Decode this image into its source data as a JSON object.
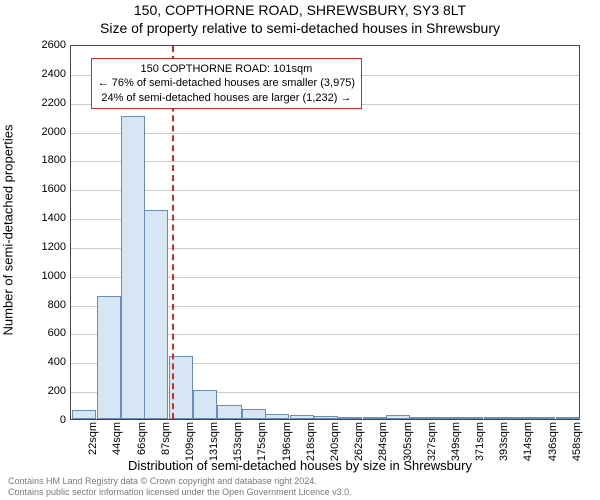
{
  "title_main": "150, COPTHORNE ROAD, SHREWSBURY, SY3 8LT",
  "title_sub": "Size of property relative to semi-detached houses in Shrewsbury",
  "ylabel": "Number of semi-detached properties",
  "xlabel": "Distribution of semi-detached houses by size in Shrewsbury",
  "footer_line1": "Contains HM Land Registry data © Crown copyright and database right 2024.",
  "footer_line2": "Contains public sector information licensed under the Open Government Licence v3.0.",
  "chart": {
    "type": "histogram",
    "background_color": "#ffffff",
    "grid_color": "#cccccc",
    "axis_color": "#444444",
    "bar_fill": "#d6e6f5",
    "bar_border": "#6b8db5",
    "refline_color": "#d62728",
    "annot_border": "#d62728",
    "annot_bg": "#ffffff",
    "title_fontsize": 14,
    "label_fontsize": 13,
    "tick_fontsize": 11,
    "annot_fontsize": 11,
    "footer_fontsize": 9,
    "footer_color": "#7a7a7a",
    "ylim": [
      0,
      2600
    ],
    "ytick_step": 200,
    "xlim": [
      10,
      470
    ],
    "xtick_start": 22,
    "xtick_step": 21.8,
    "xtick_count": 21,
    "xtick_unit": "sqm",
    "bin_width": 21.8,
    "refline_x": 101,
    "annotation": {
      "line1": "150 COPTHORNE ROAD: 101sqm",
      "line2": "← 76% of semi-detached houses are smaller (3,975)",
      "line3": "24% of semi-detached houses are larger (1,232) →",
      "y_value": 2350
    },
    "bins": [
      {
        "x": 22,
        "count": 60
      },
      {
        "x": 44,
        "count": 850
      },
      {
        "x": 66,
        "count": 2100
      },
      {
        "x": 87,
        "count": 1450
      },
      {
        "x": 109,
        "count": 440
      },
      {
        "x": 131,
        "count": 200
      },
      {
        "x": 153,
        "count": 95
      },
      {
        "x": 175,
        "count": 70
      },
      {
        "x": 196,
        "count": 35
      },
      {
        "x": 218,
        "count": 25
      },
      {
        "x": 240,
        "count": 22
      },
      {
        "x": 262,
        "count": 12
      },
      {
        "x": 284,
        "count": 10
      },
      {
        "x": 305,
        "count": 30
      },
      {
        "x": 327,
        "count": 5
      },
      {
        "x": 349,
        "count": 3
      },
      {
        "x": 371,
        "count": 2
      },
      {
        "x": 393,
        "count": 2
      },
      {
        "x": 414,
        "count": 2
      },
      {
        "x": 436,
        "count": 2
      },
      {
        "x": 458,
        "count": 2
      }
    ]
  }
}
